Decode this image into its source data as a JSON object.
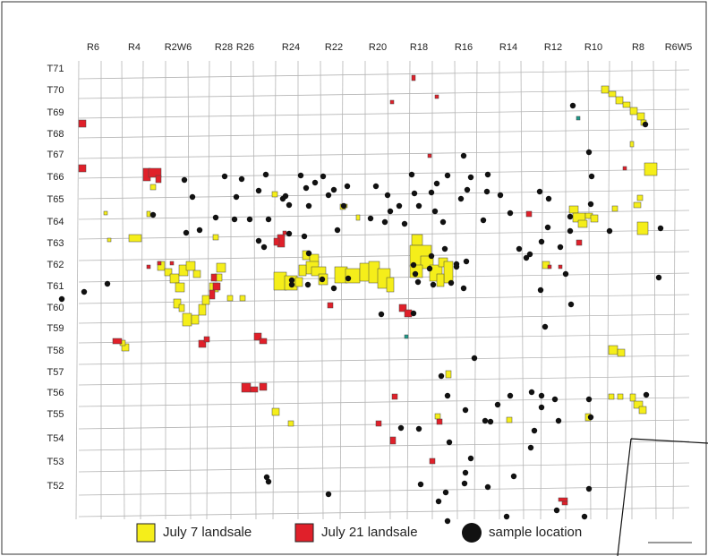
{
  "range_labels": [
    "R6",
    "R4",
    "R2W6",
    "R28",
    "R26",
    "R24",
    "R22",
    "R20",
    "R18",
    "R16",
    "R14",
    "R12",
    "R10",
    "R8",
    "R6W5"
  ],
  "township_labels": [
    "T71",
    "T70",
    "T69",
    "T68",
    "T67",
    "T66",
    "T65",
    "T64",
    "T63",
    "T62",
    "T61",
    "T60",
    "T59",
    "T58",
    "T57",
    "T56",
    "T55",
    "T54",
    "T53",
    "T52"
  ],
  "legend": {
    "yellow_label": "July 7 landsale",
    "red_label": "July 21 landsale",
    "sample_label": "sample location"
  },
  "colors": {
    "yellow": "#f5ee1a",
    "red": "#e0202a",
    "teal": "#1e9a8a",
    "grid": "#b5b5b5",
    "sample": "#111111"
  },
  "icons": {
    "yellow_swatch": "yellow-square-icon",
    "red_swatch": "red-square-icon",
    "sample_marker": "black-circle-icon"
  }
}
